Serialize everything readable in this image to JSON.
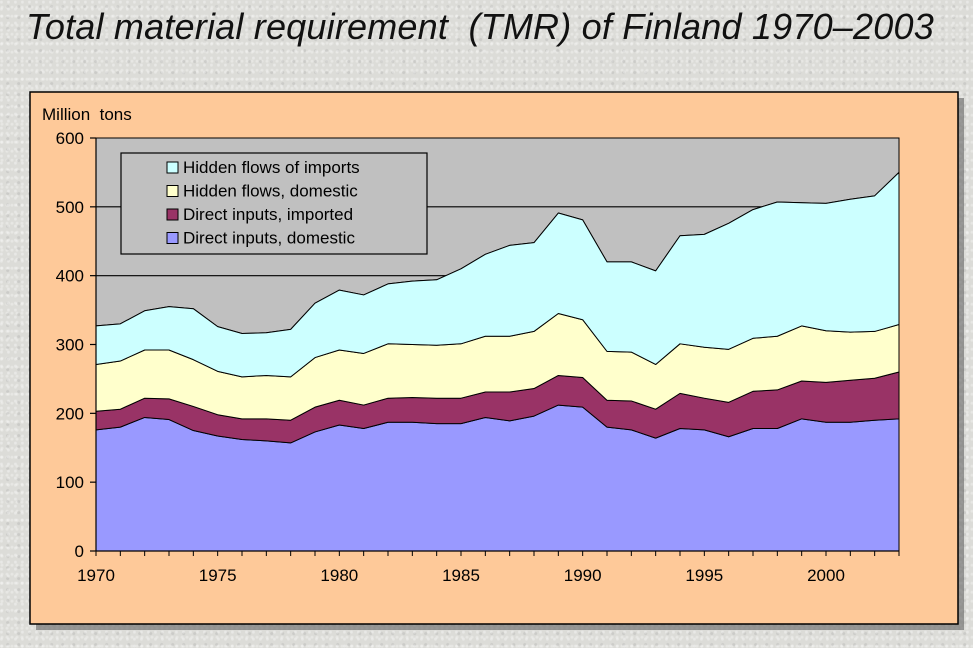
{
  "page": {
    "title": "Total material requirement  (TMR) of Finland 1970–2003"
  },
  "colors": {
    "frame_bg": "#fec999",
    "plot_bg": "#c0c0c0",
    "legend_bg": "#c0c0c0",
    "outline": "#000000"
  },
  "chart_data": {
    "type": "area",
    "stacked": true,
    "ylabel": "Million  tons",
    "xlabel": "",
    "ylim": [
      0,
      600
    ],
    "yticks": [
      0,
      100,
      200,
      300,
      400,
      500,
      600
    ],
    "xlim": [
      1970,
      2003
    ],
    "xticks": [
      1970,
      1975,
      1980,
      1985,
      1990,
      1995,
      2000
    ],
    "gridlines_y": [
      400,
      500
    ],
    "legend_position": "top-left",
    "x": [
      1970,
      1971,
      1972,
      1973,
      1974,
      1975,
      1976,
      1977,
      1978,
      1979,
      1980,
      1981,
      1982,
      1983,
      1984,
      1985,
      1986,
      1987,
      1988,
      1989,
      1990,
      1991,
      1992,
      1993,
      1994,
      1995,
      1996,
      1997,
      1998,
      1999,
      2000,
      2001,
      2002,
      2003
    ],
    "series": [
      {
        "name": "Direct inputs, domestic",
        "color": "#9999ff",
        "values": [
          176,
          180,
          194,
          191,
          175,
          167,
          162,
          160,
          157,
          173,
          183,
          178,
          187,
          187,
          185,
          185,
          194,
          189,
          196,
          212,
          209,
          180,
          176,
          164,
          178,
          176,
          166,
          178,
          178,
          192,
          187,
          187,
          190,
          192
        ]
      },
      {
        "name": "Direct inputs, imported",
        "color": "#993366",
        "values": [
          27,
          26,
          28,
          30,
          35,
          31,
          30,
          32,
          33,
          36,
          36,
          34,
          35,
          36,
          37,
          37,
          37,
          42,
          40,
          43,
          43,
          39,
          42,
          42,
          51,
          46,
          50,
          54,
          56,
          55,
          58,
          61,
          61,
          68
        ]
      },
      {
        "name": "Hidden flows, domestic",
        "color": "#ffffcc",
        "values": [
          68,
          70,
          70,
          71,
          68,
          63,
          61,
          63,
          63,
          72,
          73,
          75,
          79,
          77,
          77,
          79,
          81,
          81,
          83,
          90,
          84,
          71,
          71,
          65,
          72,
          74,
          77,
          77,
          78,
          80,
          75,
          70,
          68,
          69
        ]
      },
      {
        "name": "Hidden flows of imports",
        "color": "#ccffff",
        "values": [
          56,
          54,
          57,
          63,
          74,
          65,
          63,
          62,
          69,
          79,
          87,
          85,
          87,
          92,
          95,
          109,
          119,
          132,
          129,
          146,
          145,
          130,
          131,
          136,
          157,
          164,
          183,
          187,
          195,
          179,
          185,
          193,
          197,
          221
        ]
      }
    ]
  }
}
